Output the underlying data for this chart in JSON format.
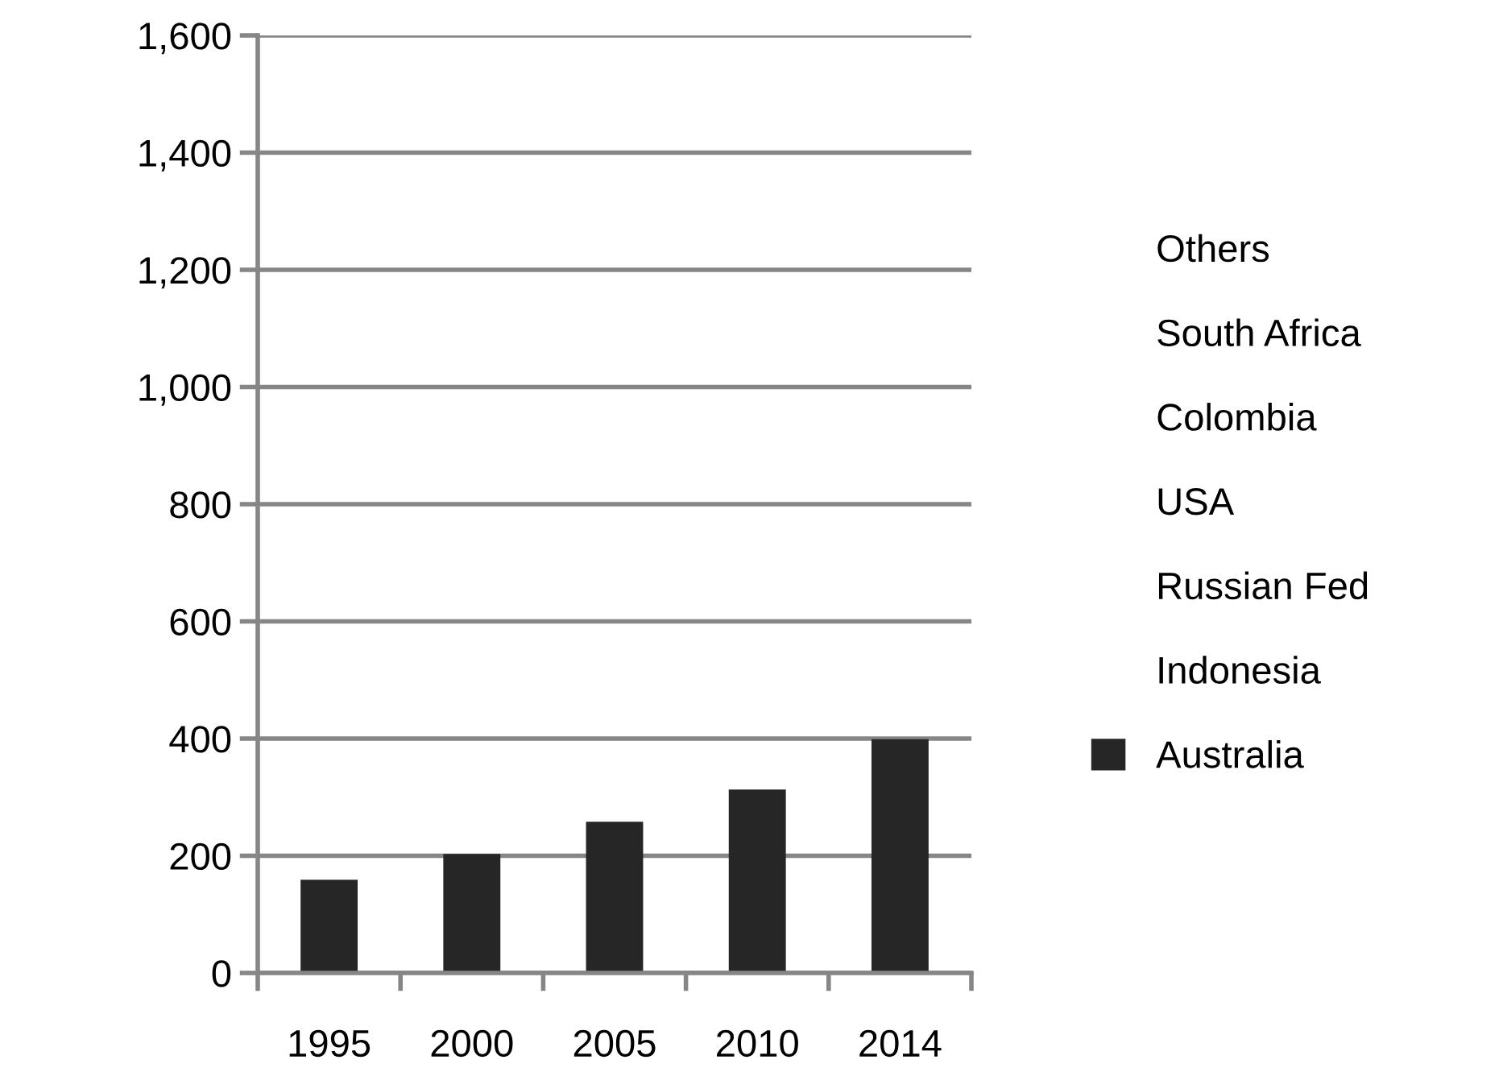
{
  "chart_data": {
    "type": "bar",
    "stacked": true,
    "categories": [
      "1995",
      "2000",
      "2005",
      "2010",
      "2014"
    ],
    "series": [
      {
        "name": "Australia",
        "color": "#262626",
        "values": [
          159,
          203,
          258,
          313,
          399
        ]
      },
      {
        "name": "Indonesia",
        "values": [
          null,
          null,
          null,
          null,
          null
        ]
      },
      {
        "name": "Russian Fed",
        "values": [
          null,
          null,
          null,
          null,
          null
        ]
      },
      {
        "name": "USA",
        "values": [
          null,
          null,
          null,
          null,
          null
        ]
      },
      {
        "name": "Colombia",
        "values": [
          null,
          null,
          null,
          null,
          null
        ]
      },
      {
        "name": "South Africa",
        "values": [
          null,
          null,
          null,
          null,
          null
        ]
      },
      {
        "name": "Others",
        "values": [
          null,
          null,
          null,
          null,
          null
        ]
      }
    ],
    "ylim": [
      0,
      1600
    ],
    "yticks": [
      {
        "value": 0,
        "label": "0"
      },
      200,
      400,
      600,
      800,
      {
        "value": 1000,
        "label": "1,000"
      },
      {
        "value": 1200,
        "label": "1,200"
      },
      {
        "value": 1400,
        "label": "1,400"
      },
      {
        "value": 1600,
        "label": "1,600"
      }
    ],
    "grid": "y",
    "legend": "right"
  }
}
